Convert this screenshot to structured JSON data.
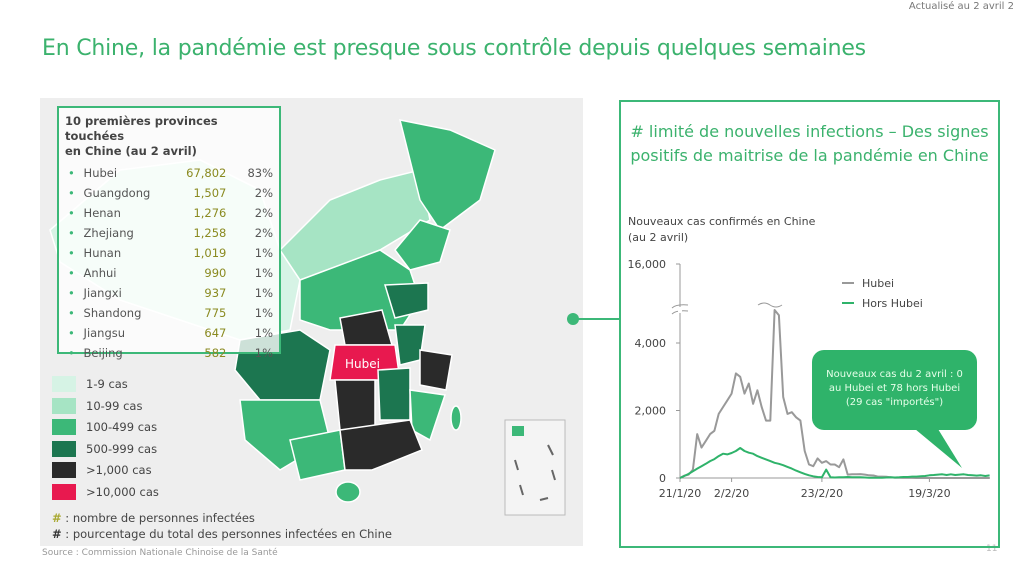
{
  "header": {
    "updated": "Actualisé au 2 avril 2",
    "title": "En Chine, la pandémie est presque sous contrôle depuis quelques semaines"
  },
  "map": {
    "hubei_label": "Hubei",
    "top10": {
      "heading_line1": "10 premières provinces touchées",
      "heading_line2": "en Chine (au 2 avril)",
      "rows": [
        {
          "name": "Hubei",
          "cases": "67,802",
          "pct": "83%"
        },
        {
          "name": "Guangdong",
          "cases": "1,507",
          "pct": "2%"
        },
        {
          "name": "Henan",
          "cases": "1,276",
          "pct": "2%"
        },
        {
          "name": "Zhejiang",
          "cases": "1,258",
          "pct": "2%"
        },
        {
          "name": "Hunan",
          "cases": "1,019",
          "pct": "1%"
        },
        {
          "name": "Anhui",
          "cases": "990",
          "pct": "1%"
        },
        {
          "name": "Jiangxi",
          "cases": "937",
          "pct": "1%"
        },
        {
          "name": "Shandong",
          "cases": "775",
          "pct": "1%"
        },
        {
          "name": "Jiangsu",
          "cases": "647",
          "pct": "1%"
        },
        {
          "name": "Beijing",
          "cases": "582",
          "pct": "1%"
        }
      ]
    },
    "legend": [
      {
        "label": "1-9 cas",
        "color": "#d6f3e5"
      },
      {
        "label": "10-99 cas",
        "color": "#a6e4c4"
      },
      {
        "label": "100-499 cas",
        "color": "#3cb878"
      },
      {
        "label": "500-999 cas",
        "color": "#1c7650"
      },
      {
        "label": ">1,000 cas",
        "color": "#2a2a2a"
      },
      {
        "label": ">10,000 cas",
        "color": "#e8194f"
      }
    ],
    "note_symbol": "#",
    "note_cases": ": nombre de personnes infectées",
    "note_pct": ": pourcentage du total des personnes infectées en Chine"
  },
  "footer": {
    "source": "Source : Commission Nationale Chinoise de la Santé",
    "page": "11"
  },
  "chart_data": {
    "type": "line",
    "title": "# limité de nouvelles infections – Des signes positifs de maitrise de la pandémie en Chine",
    "subtitle_line1": "Nouveaux cas confirmés en Chine",
    "subtitle_line2": "(au 2 avril)",
    "x_start": "2020-01-21",
    "x_end": "2020-04-02",
    "x_ticks": [
      "21/1/20",
      "2/2/20",
      "23/2/20",
      "19/3/20"
    ],
    "y_ticks": [
      "0",
      "2,000",
      "4,000",
      "16,000"
    ],
    "ylim": [
      0,
      16000
    ],
    "y_axis_break": [
      5000,
      15000
    ],
    "legend_position": "top-right",
    "series": [
      {
        "name": "Hubei",
        "color": "#999999",
        "values": [
          0,
          70,
          100,
          250,
          1300,
          900,
          1100,
          1300,
          1400,
          1900,
          2100,
          2300,
          2500,
          3100,
          3000,
          2500,
          2800,
          2200,
          2600,
          2100,
          1700,
          1700,
          14840,
          4823,
          2400,
          1900,
          1950,
          1800,
          1700,
          800,
          400,
          350,
          580,
          450,
          500,
          400,
          400,
          320,
          550,
          100,
          110,
          110,
          115,
          100,
          80,
          75,
          40,
          40,
          35,
          20,
          10,
          5,
          4,
          3,
          4,
          0,
          1,
          0,
          0,
          0,
          0,
          0,
          0,
          0,
          0,
          0,
          0,
          0,
          0,
          0,
          1,
          0,
          0
        ]
      },
      {
        "name": "Hors Hubei",
        "color": "#2fb36a",
        "values": [
          0,
          60,
          120,
          200,
          280,
          350,
          420,
          500,
          560,
          650,
          720,
          700,
          740,
          800,
          890,
          800,
          750,
          720,
          650,
          600,
          550,
          500,
          450,
          420,
          380,
          330,
          280,
          220,
          170,
          120,
          80,
          50,
          30,
          20,
          250,
          20,
          15,
          20,
          25,
          30,
          25,
          20,
          20,
          15,
          10,
          10,
          5,
          10,
          15,
          20,
          15,
          20,
          30,
          30,
          40,
          40,
          50,
          60,
          80,
          90,
          100,
          110,
          90,
          110,
          90,
          100,
          110,
          90,
          80,
          70,
          80,
          60,
          78
        ]
      }
    ],
    "callout": {
      "line1": "Nouveaux cas du 2 avril : 0",
      "line2": "au Hubei et 78 hors Hubei",
      "line3": "(29 cas \"importés\")"
    }
  }
}
